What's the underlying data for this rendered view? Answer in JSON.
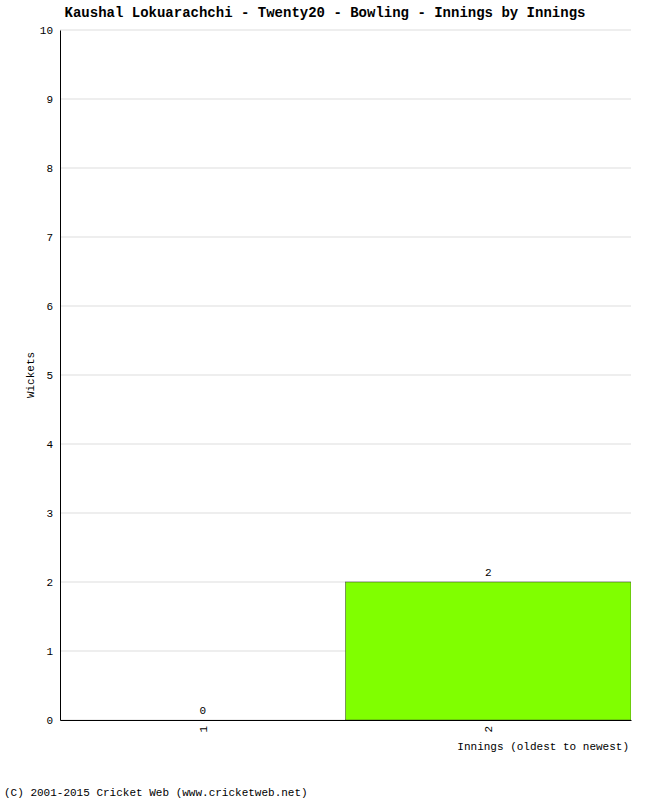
{
  "chart_data": {
    "type": "bar",
    "title": "Kaushal Lokuarachchi - Twenty20 - Bowling - Innings by Innings",
    "y_label": "Wickets",
    "x_label": "Innings (oldest to newest)",
    "annotations": [
      "(C) 2001-2015 Cricket Web (www.cricketweb.net)"
    ],
    "categories": [
      "1",
      "2"
    ],
    "values": [
      0,
      2
    ],
    "color": "#80ff00",
    "ylim": [
      0,
      10
    ],
    "yticks": [
      0,
      1,
      2,
      3,
      4,
      5,
      6,
      7,
      8,
      9,
      10
    ],
    "grid": true,
    "data_labels": true
  }
}
